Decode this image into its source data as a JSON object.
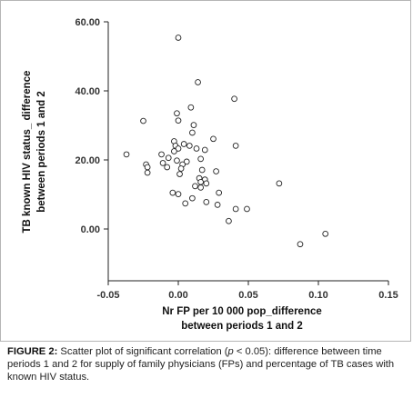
{
  "chart_data": {
    "type": "scatter",
    "xlabel_lines": [
      "Nr FP per 10 000 pop_difference",
      "between periods 1 and 2"
    ],
    "ylabel_lines": [
      "TB known HIV status_ difference",
      "between periods 1 and 2"
    ],
    "xlim": [
      -0.05,
      0.15
    ],
    "ylim": [
      -5,
      60
    ],
    "xticks": [
      -0.05,
      0.0,
      0.05,
      0.1,
      0.15
    ],
    "xtick_labels": [
      "-0.05",
      "0.00",
      "0.05",
      "0.10",
      "0.15"
    ],
    "yticks": [
      0,
      20,
      40,
      60
    ],
    "ytick_labels": [
      "0.00",
      "20.00",
      "40.00",
      "60.00"
    ],
    "grid": false,
    "legend": "none",
    "marker": "open-circle",
    "points": [
      {
        "x": 0.0,
        "y": 55.4
      },
      {
        "x": 0.014,
        "y": 42.5
      },
      {
        "x": 0.04,
        "y": 37.7
      },
      {
        "x": 0.009,
        "y": 35.2
      },
      {
        "x": -0.001,
        "y": 33.5
      },
      {
        "x": -0.025,
        "y": 31.3
      },
      {
        "x": 0.0,
        "y": 31.4
      },
      {
        "x": 0.011,
        "y": 30.1
      },
      {
        "x": 0.01,
        "y": 27.9
      },
      {
        "x": 0.025,
        "y": 26.1
      },
      {
        "x": -0.003,
        "y": 25.4
      },
      {
        "x": 0.004,
        "y": 24.6
      },
      {
        "x": -0.002,
        "y": 24.1
      },
      {
        "x": 0.008,
        "y": 24.1
      },
      {
        "x": 0.041,
        "y": 24.1
      },
      {
        "x": 0.0,
        "y": 23.3
      },
      {
        "x": 0.013,
        "y": 23.3
      },
      {
        "x": 0.019,
        "y": 22.9
      },
      {
        "x": -0.003,
        "y": 22.5
      },
      {
        "x": -0.037,
        "y": 21.6
      },
      {
        "x": -0.012,
        "y": 21.6
      },
      {
        "x": -0.007,
        "y": 20.6
      },
      {
        "x": 0.016,
        "y": 20.3
      },
      {
        "x": -0.001,
        "y": 19.8
      },
      {
        "x": 0.006,
        "y": 19.5
      },
      {
        "x": -0.011,
        "y": 19.1
      },
      {
        "x": 0.003,
        "y": 18.7
      },
      {
        "x": -0.023,
        "y": 18.7
      },
      {
        "x": -0.022,
        "y": 17.9
      },
      {
        "x": -0.008,
        "y": 17.9
      },
      {
        "x": 0.002,
        "y": 17.5
      },
      {
        "x": 0.017,
        "y": 17.1
      },
      {
        "x": 0.027,
        "y": 16.7
      },
      {
        "x": -0.022,
        "y": 16.3
      },
      {
        "x": 0.001,
        "y": 15.9
      },
      {
        "x": 0.015,
        "y": 14.7
      },
      {
        "x": 0.019,
        "y": 14.3
      },
      {
        "x": 0.016,
        "y": 13.6
      },
      {
        "x": 0.02,
        "y": 13.2
      },
      {
        "x": 0.072,
        "y": 13.2
      },
      {
        "x": 0.012,
        "y": 12.4
      },
      {
        "x": 0.016,
        "y": 12.0
      },
      {
        "x": 0.029,
        "y": 10.5
      },
      {
        "x": -0.004,
        "y": 10.5
      },
      {
        "x": 0.0,
        "y": 10.1
      },
      {
        "x": 0.01,
        "y": 8.9
      },
      {
        "x": 0.02,
        "y": 7.8
      },
      {
        "x": 0.005,
        "y": 7.4
      },
      {
        "x": 0.028,
        "y": 7.0
      },
      {
        "x": 0.041,
        "y": 5.8
      },
      {
        "x": 0.049,
        "y": 5.8
      },
      {
        "x": 0.036,
        "y": 2.3
      },
      {
        "x": 0.105,
        "y": -1.4
      },
      {
        "x": 0.087,
        "y": -4.4
      }
    ]
  },
  "caption": {
    "label": "FIGURE 2:",
    "text_before_p": " Scatter plot of significant correlation (",
    "p_symbol": "p",
    "text_after_p": " < 0.05): difference between time periods 1 and 2 for supply of family physicians (FPs) and percentage of TB cases with known HIV status."
  }
}
